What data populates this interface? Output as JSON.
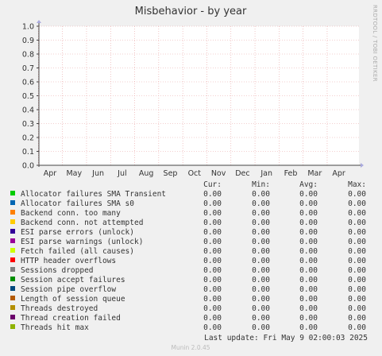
{
  "chart_data": {
    "type": "line",
    "title": "Misbehavior - by year",
    "side_label": "RRDTOOL / TOBI OETIKER",
    "y_ticks": [
      "0.0",
      "0.1",
      "0.2",
      "0.3",
      "0.4",
      "0.5",
      "0.6",
      "0.7",
      "0.8",
      "0.9",
      "1.0"
    ],
    "ylim": [
      0,
      1.0
    ],
    "x_ticks": [
      "Apr",
      "May",
      "Jun",
      "Jul",
      "Aug",
      "Sep",
      "Oct",
      "Nov",
      "Dec",
      "Jan",
      "Feb",
      "Mar",
      "Apr"
    ],
    "grid": true,
    "legend_headers": [
      "Cur:",
      "Min:",
      "Avg:",
      "Max:"
    ],
    "series": [
      {
        "name": "Allocator failures SMA Transient",
        "color": "#00cc00",
        "cur": "0.00",
        "min": "0.00",
        "avg": "0.00",
        "max": "0.00"
      },
      {
        "name": "Allocator failures SMA s0",
        "color": "#0066b3",
        "cur": "0.00",
        "min": "0.00",
        "avg": "0.00",
        "max": "0.00"
      },
      {
        "name": "Backend conn. too many",
        "color": "#ff8000",
        "cur": "0.00",
        "min": "0.00",
        "avg": "0.00",
        "max": "0.00"
      },
      {
        "name": "Backend conn. not attempted",
        "color": "#ffcc00",
        "cur": "0.00",
        "min": "0.00",
        "avg": "0.00",
        "max": "0.00"
      },
      {
        "name": "ESI parse errors (unlock)",
        "color": "#330099",
        "cur": "0.00",
        "min": "0.00",
        "avg": "0.00",
        "max": "0.00"
      },
      {
        "name": "ESI parse warnings (unlock)",
        "color": "#990099",
        "cur": "0.00",
        "min": "0.00",
        "avg": "0.00",
        "max": "0.00"
      },
      {
        "name": "Fetch failed (all causes)",
        "color": "#ccff00",
        "cur": "0.00",
        "min": "0.00",
        "avg": "0.00",
        "max": "0.00"
      },
      {
        "name": "HTTP header overflows",
        "color": "#ff0000",
        "cur": "0.00",
        "min": "0.00",
        "avg": "0.00",
        "max": "0.00"
      },
      {
        "name": "Sessions dropped",
        "color": "#808080",
        "cur": "0.00",
        "min": "0.00",
        "avg": "0.00",
        "max": "0.00"
      },
      {
        "name": "Session accept failures",
        "color": "#008f00",
        "cur": "0.00",
        "min": "0.00",
        "avg": "0.00",
        "max": "0.00"
      },
      {
        "name": "Session pipe overflow",
        "color": "#00487d",
        "cur": "0.00",
        "min": "0.00",
        "avg": "0.00",
        "max": "0.00"
      },
      {
        "name": "Length of session queue",
        "color": "#b35a00",
        "cur": "0.00",
        "min": "0.00",
        "avg": "0.00",
        "max": "0.00"
      },
      {
        "name": "Threads destroyed",
        "color": "#b38f00",
        "cur": "0.00",
        "min": "0.00",
        "avg": "0.00",
        "max": "0.00"
      },
      {
        "name": "Thread creation failed",
        "color": "#6b006b",
        "cur": "0.00",
        "min": "0.00",
        "avg": "0.00",
        "max": "0.00"
      },
      {
        "name": "Threads hit max",
        "color": "#8fb300",
        "cur": "0.00",
        "min": "0.00",
        "avg": "0.00",
        "max": "0.00"
      }
    ],
    "last_update": "Last update: Fri May  9 02:00:03 2025",
    "footer": "Munin 2.0.45"
  }
}
